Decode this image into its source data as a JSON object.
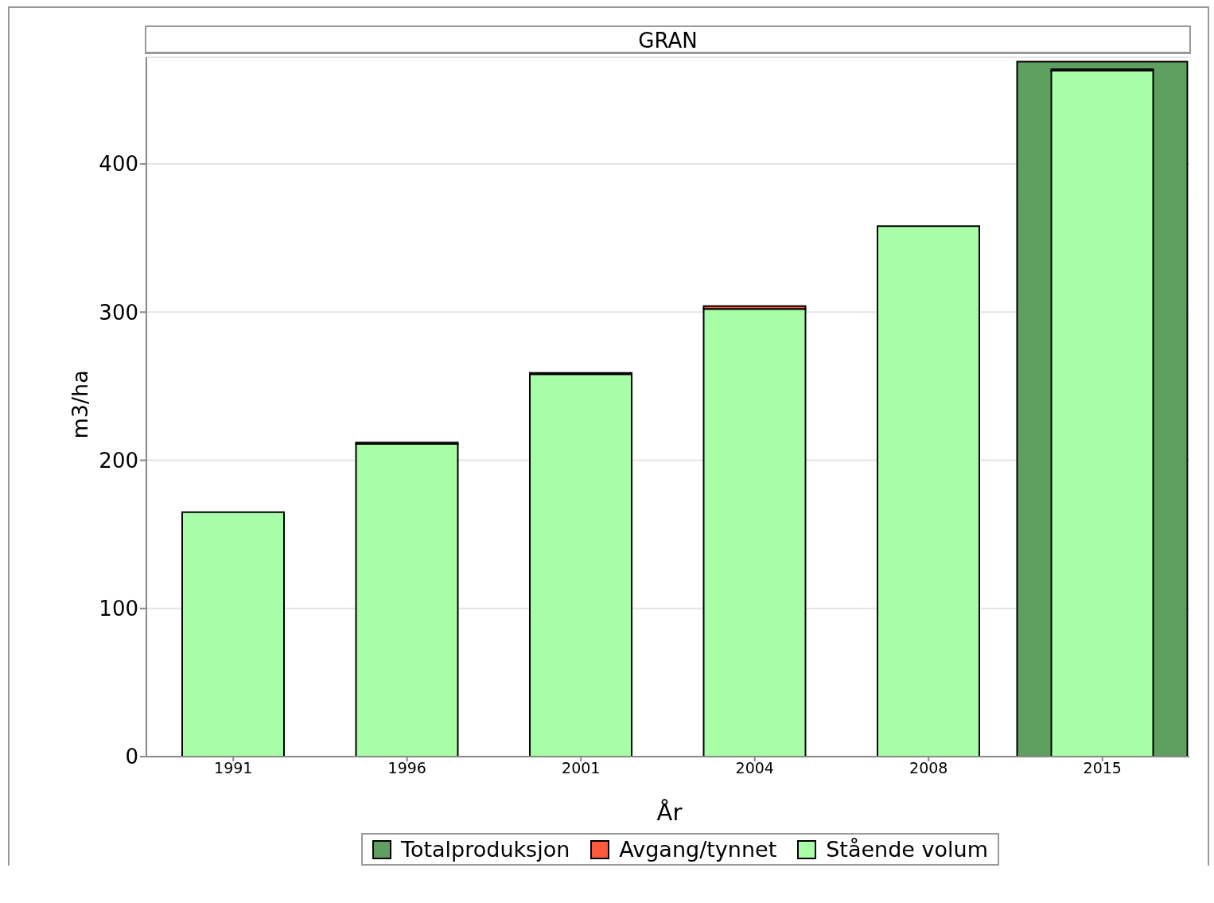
{
  "chart_data": {
    "type": "bar",
    "title": "GRAN",
    "xlabel": "År",
    "ylabel": "m3/ha",
    "categories": [
      "1991",
      "1996",
      "2001",
      "2004",
      "2008",
      "2015"
    ],
    "series": [
      {
        "name": "Totalproduksjon",
        "color": "#5f9f5f",
        "values": [
          null,
          null,
          null,
          null,
          null,
          469
        ]
      },
      {
        "name": "Avgang/tynnet",
        "color": "#ff5a3c",
        "values": [
          null,
          1,
          1,
          2,
          null,
          1
        ],
        "base": [
          null,
          211,
          258,
          302,
          null,
          463
        ]
      },
      {
        "name": "Stående volum",
        "color": "#a8fea6",
        "values": [
          165,
          211,
          258,
          302,
          358,
          463
        ]
      }
    ],
    "ylim": [
      0,
      472
    ],
    "yticks": [
      0,
      100,
      200,
      300,
      400
    ],
    "grid": "y",
    "legend": "bottom"
  }
}
